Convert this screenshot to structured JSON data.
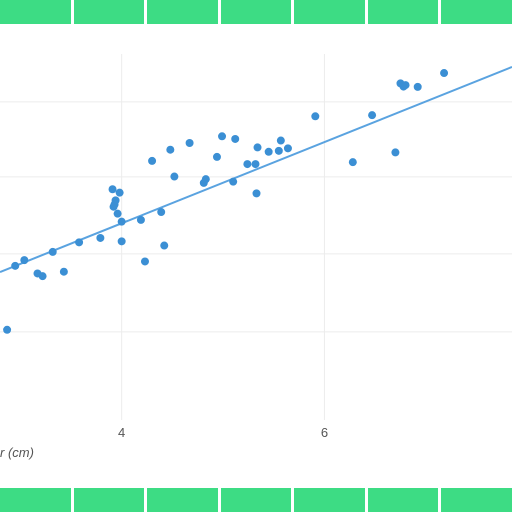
{
  "colors": {
    "band": "#3ddc84",
    "points": "#3b8fd4",
    "trendline": "#5aa3e0",
    "grid": "#ececec"
  },
  "chart_data": {
    "type": "scatter",
    "xlabel": "r (cm)",
    "ylabel": "",
    "title": "",
    "xlim": [
      2.8,
      7.85
    ],
    "ylim": [
      0.0,
      1.0
    ],
    "x_ticks": [
      4,
      6
    ],
    "x_tick_labels": [
      "4",
      "6"
    ],
    "y_gridlines": [
      0.2225,
      0.4194,
      0.6139,
      0.8032
    ],
    "grid": true,
    "legend": "none",
    "trendline": {
      "x": [
        2.8,
        7.85
      ],
      "y": [
        0.3737,
        0.8915
      ]
    },
    "series": [
      {
        "x": [
          2.87,
          2.95,
          3.04,
          3.17,
          3.22,
          3.32,
          3.43,
          3.58,
          3.79,
          3.91,
          3.92,
          3.93,
          3.94,
          3.96,
          3.98,
          4.0,
          4.0,
          4.19,
          4.23,
          4.3,
          4.39,
          4.42,
          4.48,
          4.52,
          4.67,
          4.81,
          4.83,
          4.94,
          4.99,
          5.1,
          5.12,
          5.24,
          5.32,
          5.33,
          5.34,
          5.45,
          5.55,
          5.57,
          5.64,
          5.91,
          6.28,
          6.47,
          6.7,
          6.75,
          6.78,
          6.8,
          6.92,
          7.18
        ],
        "y": [
          0.2278,
          0.3893,
          0.4037,
          0.3701,
          0.3632,
          0.4245,
          0.3745,
          0.4486,
          0.4597,
          0.5827,
          0.5386,
          0.5442,
          0.5546,
          0.5211,
          0.5741,
          0.5008,
          0.4512,
          0.5053,
          0.4004,
          0.6542,
          0.5251,
          0.4406,
          0.6826,
          0.6148,
          0.6995,
          0.5987,
          0.6082,
          0.6643,
          0.7164,
          0.6019,
          0.7097,
          0.6463,
          0.6463,
          0.5723,
          0.6883,
          0.6773,
          0.6797,
          0.7057,
          0.686,
          0.7669,
          0.6511,
          0.7698,
          0.6757,
          0.8501,
          0.8419,
          0.8458,
          0.8412,
          0.8762
        ]
      }
    ]
  }
}
